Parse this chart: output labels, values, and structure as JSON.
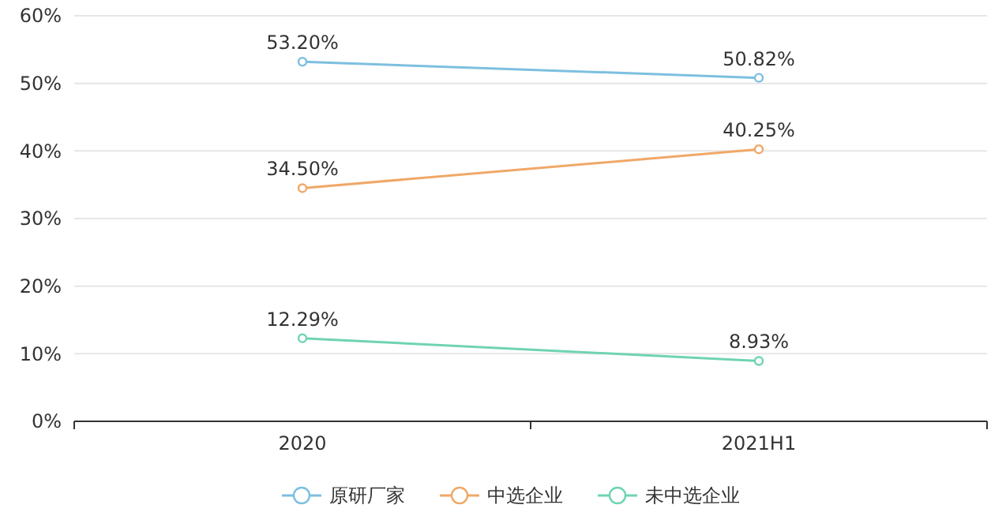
{
  "chart_data": {
    "type": "line",
    "categories": [
      "2020",
      "2021H1"
    ],
    "series": [
      {
        "name": "原研厂家",
        "color": "#7dbfe0",
        "values": [
          53.2,
          50.82
        ],
        "value_labels": [
          "53.20%",
          "50.82%"
        ]
      },
      {
        "name": "中选企业",
        "color": "#f0a868",
        "values": [
          34.5,
          40.25
        ],
        "value_labels": [
          "34.50%",
          "40.25%"
        ]
      },
      {
        "name": "未中选企业",
        "color": "#6fd4b0",
        "values": [
          12.29,
          8.93
        ],
        "value_labels": [
          "12.29%",
          "8.93%"
        ]
      }
    ],
    "ylim": [
      0,
      60
    ],
    "yticks": [
      {
        "value": 0,
        "label": "0%"
      },
      {
        "value": 10,
        "label": "10%"
      },
      {
        "value": 20,
        "label": "20%"
      },
      {
        "value": 30,
        "label": "30%"
      },
      {
        "value": 40,
        "label": "40%"
      },
      {
        "value": 50,
        "label": "50%"
      },
      {
        "value": 60,
        "label": "60%"
      }
    ],
    "grid": "y",
    "legend": "bottom",
    "marker": "circle",
    "line_style": "solid"
  }
}
